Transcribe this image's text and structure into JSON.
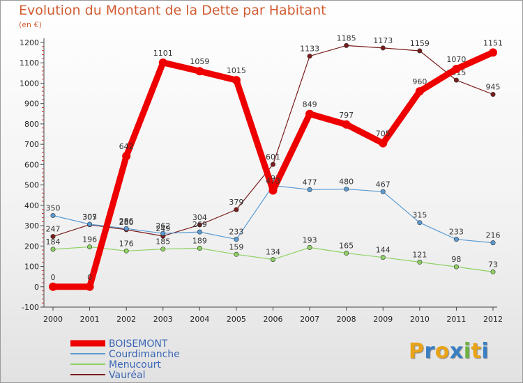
{
  "header": {
    "title": "Evolution du Montant de la Dette par Habitant",
    "subtitle": "(en €)"
  },
  "logo": {
    "text": "Proxiti",
    "colors": [
      "#e8a317",
      "#3a7fc4",
      "#e8a317",
      "#3a7fc4",
      "#6cb33f",
      "#e8a317",
      "#3a7fc4"
    ]
  },
  "chart_data": {
    "type": "line",
    "x": [
      "2000",
      "2001",
      "2002",
      "2003",
      "2004",
      "2005",
      "2006",
      "2007",
      "2008",
      "2009",
      "2010",
      "2011",
      "2012"
    ],
    "ylim": [
      -100,
      1200
    ],
    "yticks": [
      -100,
      0,
      100,
      200,
      300,
      400,
      500,
      600,
      700,
      800,
      900,
      1000,
      1100,
      1200
    ],
    "grid": false,
    "legend_position": "bottom-left",
    "series": [
      {
        "name": "BOISEMONT",
        "color": "#ee0000",
        "width": 9,
        "marker": 6,
        "values": [
          0,
          0,
          642,
          1101,
          1059,
          1015,
          473,
          849,
          797,
          705,
          960,
          1070,
          1151
        ],
        "labels": [
          "0",
          "0",
          "642",
          "1101",
          "1059",
          "1015",
          "473",
          "849",
          "797",
          "705",
          "960",
          "1070",
          "1151"
        ]
      },
      {
        "name": "Courdimanche",
        "color": "#5a9bd4",
        "width": 1.2,
        "marker": 3.2,
        "values": [
          350,
          307,
          286,
          262,
          269,
          233,
          497,
          477,
          480,
          467,
          315,
          233,
          216
        ],
        "labels": [
          "350",
          "307",
          "286",
          "262",
          "269",
          "233",
          "497",
          "477",
          "480",
          "467",
          "315",
          "233",
          "216"
        ]
      },
      {
        "name": "Menucourt",
        "color": "#8ed163",
        "width": 1.2,
        "marker": 3.2,
        "values": [
          184,
          196,
          176,
          185,
          189,
          159,
          134,
          193,
          165,
          144,
          121,
          98,
          73
        ],
        "labels": [
          "184",
          "196",
          "176",
          "185",
          "189",
          "159",
          "134",
          "193",
          "165",
          "144",
          "121",
          "98",
          "73"
        ]
      },
      {
        "name": "Vauréal",
        "color": "#7a1c1c",
        "width": 1.2,
        "marker": 3.2,
        "values": [
          247,
          305,
          280,
          249,
          304,
          379,
          601,
          1133,
          1185,
          1173,
          1159,
          1015,
          945
        ],
        "labels": [
          "247",
          "305",
          "280",
          "249",
          "304",
          "379",
          "601",
          "1133",
          "1185",
          "1173",
          "1159",
          "1015",
          "945"
        ]
      }
    ]
  }
}
